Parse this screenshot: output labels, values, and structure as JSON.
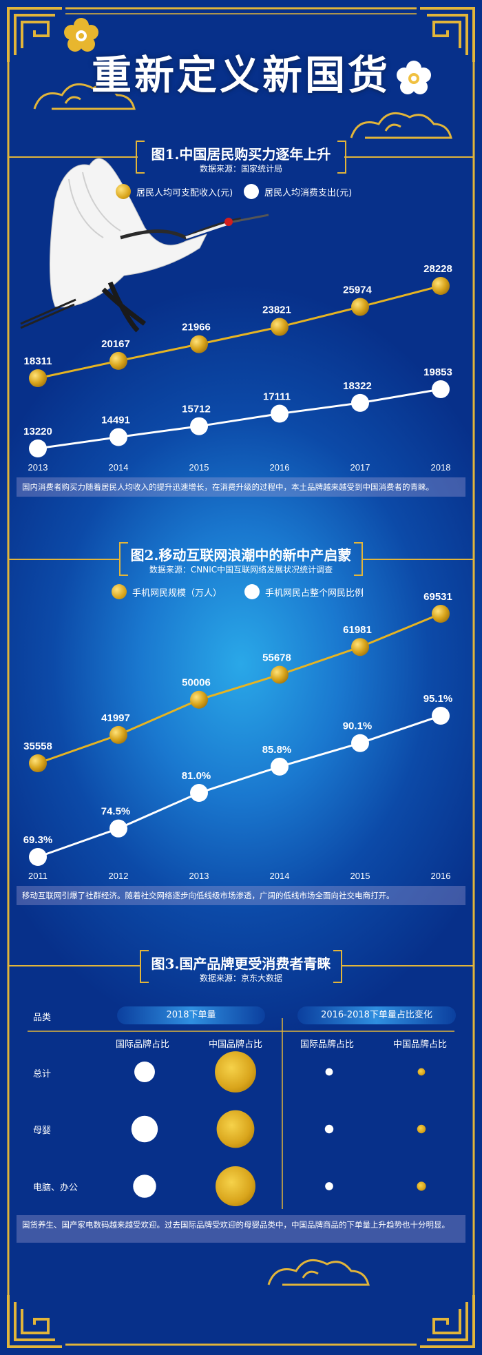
{
  "title": "重新定义新国货",
  "colors": {
    "gold": "#e6b422",
    "white": "#ffffff",
    "navy": "#0a3594"
  },
  "icons": [
    "flower-icon",
    "cloud-icon",
    "crane-icon"
  ],
  "section1": {
    "title": "图1.中国居民购买力逐年上升",
    "source": "数据来源：国家统计局",
    "legend": [
      "居民人均可支配收入(元)",
      "居民人均消费支出(元)"
    ],
    "note": "国内消费者购买力随着居民人均收入的提升迅速增长，在消费升级的过程中，本土品牌越来越受到中国消费者的青睐。"
  },
  "section2": {
    "title": "图2.移动互联网浪潮中的新中产启蒙",
    "source": "数据来源：CNNIC中国互联网络发展状况统计调查",
    "legend": [
      "手机网民规模（万人）",
      "手机网民占整个网民比例"
    ],
    "note": "移动互联网引爆了社群经济。随着社交网络逐步向低线级市场渗透，广阔的低线市场全面向社交电商打开。"
  },
  "section3": {
    "title": "图3.国产品牌更受消费者青睐",
    "source": "数据来源：京东大数据",
    "category_header": "品类",
    "group1": "2018下单量",
    "group2": "2016-2018下单量占比变化",
    "col_intl": "国际品牌占比",
    "col_cn": "中国品牌占比",
    "rows": [
      "总计",
      "母婴",
      "电脑、办公"
    ],
    "note": "国货养生、国产家电数码越来越受欢迎。过去国际品牌受欢迎的母婴品类中，中国品牌商品的下单量上升趋势也十分明显。"
  },
  "chart_data": [
    {
      "type": "line",
      "title": "图1.中国居民购买力逐年上升",
      "x": [
        "2013",
        "2014",
        "2015",
        "2016",
        "2017",
        "2018"
      ],
      "series": [
        {
          "name": "居民人均可支配收入(元)",
          "values": [
            18311,
            20167,
            21966,
            23821,
            25974,
            28228
          ],
          "labels": [
            "18311",
            "20167",
            "21966",
            "23821",
            "25974",
            "28228"
          ]
        },
        {
          "name": "居民人均消费支出(元)",
          "values": [
            13220,
            14491,
            15712,
            17111,
            18322,
            19853
          ],
          "labels": [
            "13220",
            "14491",
            "15712",
            "17111",
            "18322",
            "19853"
          ]
        }
      ]
    },
    {
      "type": "line",
      "title": "图2.移动互联网浪潮中的新中产启蒙",
      "x": [
        "2011",
        "2012",
        "2013",
        "2014",
        "2015",
        "2016"
      ],
      "series": [
        {
          "name": "手机网民规模（万人）",
          "values": [
            35558,
            41997,
            50006,
            55678,
            61981,
            69531
          ],
          "labels": [
            "35558",
            "41997",
            "50006",
            "55678",
            "61981",
            "69531"
          ]
        },
        {
          "name": "手机网民占整个网民比例",
          "values": [
            69.3,
            74.5,
            81.0,
            85.8,
            90.1,
            95.1
          ],
          "labels": [
            "69.3%",
            "74.5%",
            "81.0%",
            "85.8%",
            "90.1%",
            "95.1%"
          ]
        }
      ]
    },
    {
      "type": "scatter",
      "title": "图3.国产品牌更受消费者青睐",
      "categories": [
        "总计",
        "母婴",
        "电脑、办公"
      ],
      "series": [
        {
          "name": "2018下单量 国际品牌占比",
          "values": [
            0.2,
            0.33,
            0.25
          ]
        },
        {
          "name": "2018下单量 中国品牌占比",
          "values": [
            0.8,
            0.67,
            0.75
          ]
        },
        {
          "name": "2016-2018下单量占比变化 国际品牌占比",
          "values": [
            0.06,
            0.08,
            0.07
          ]
        },
        {
          "name": "2016-2018下单量占比变化 中国品牌占比",
          "values": [
            0.06,
            0.08,
            0.09
          ]
        }
      ]
    }
  ]
}
